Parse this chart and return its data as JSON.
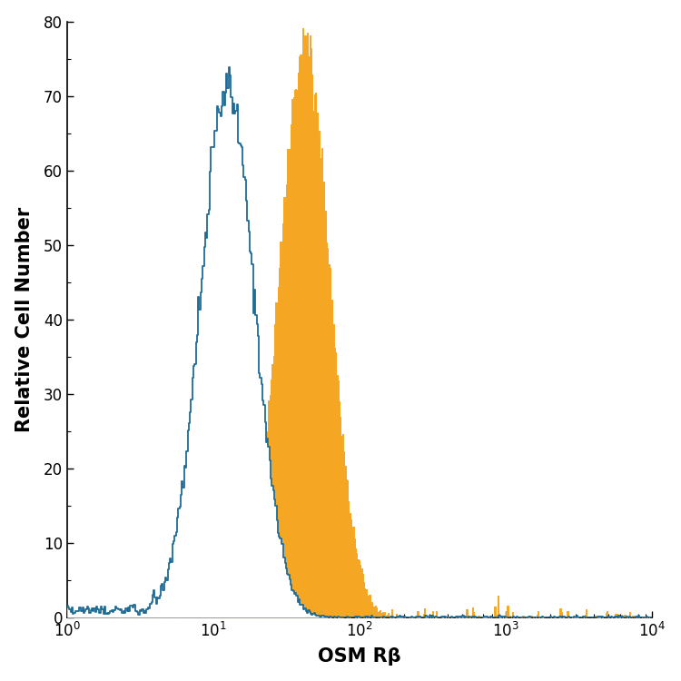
{
  "xlabel": "OSM Rβ",
  "ylabel": "Relative Cell Number",
  "xlim": [
    1,
    10000
  ],
  "ylim": [
    0,
    80
  ],
  "yticks": [
    0,
    10,
    20,
    30,
    40,
    50,
    60,
    70,
    80
  ],
  "open_color": "#1e6b96",
  "filled_color": "#f5a623",
  "open_peak_x": 12.5,
  "open_peak_y": 71,
  "filled_peak_x": 42,
  "filled_peak_y": 77,
  "open_sigma_log": 0.185,
  "filled_sigma_log": 0.17,
  "xlabel_fontsize": 15,
  "ylabel_fontsize": 15,
  "tick_fontsize": 12,
  "linewidth": 1.3
}
